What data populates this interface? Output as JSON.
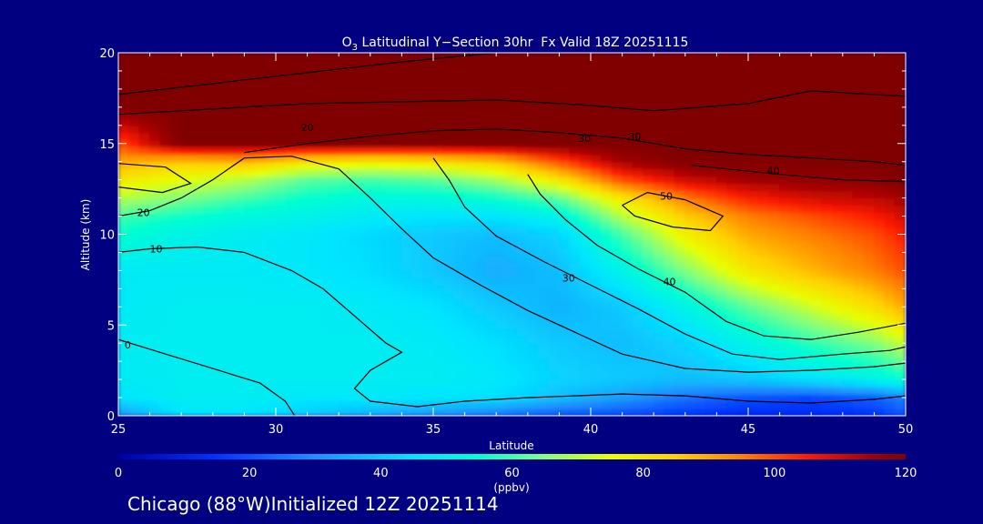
{
  "chart_data": {
    "type": "heatmap",
    "title_species": "O",
    "title_subscript": "3",
    "title_rest": " Latitudinal Y−Section 30hr  Fx Valid 18Z 20251115",
    "xlabel": "Latitude",
    "ylabel": "Altitude (km)",
    "xlim": [
      25,
      50
    ],
    "ylim": [
      0,
      20
    ],
    "x_ticks": [
      25,
      30,
      35,
      40,
      45,
      50
    ],
    "y_ticks": [
      0,
      5,
      10,
      15,
      20
    ],
    "colorbar": {
      "min": 0,
      "max": 120,
      "ticks": [
        0,
        20,
        40,
        60,
        80,
        100,
        120
      ],
      "unit": "(ppbv)",
      "stops": [
        {
          "v": 0,
          "color": "#0000a0"
        },
        {
          "v": 15,
          "color": "#0033ff"
        },
        {
          "v": 30,
          "color": "#1e90ff"
        },
        {
          "v": 45,
          "color": "#00e5ff"
        },
        {
          "v": 55,
          "color": "#00ffd0"
        },
        {
          "v": 65,
          "color": "#80ff80"
        },
        {
          "v": 75,
          "color": "#e8ff00"
        },
        {
          "v": 85,
          "color": "#ffd000"
        },
        {
          "v": 95,
          "color": "#ff8000"
        },
        {
          "v": 105,
          "color": "#ff1a00"
        },
        {
          "v": 115,
          "color": "#a00000"
        },
        {
          "v": 120,
          "color": "#800000"
        }
      ]
    },
    "grid_x": [
      25,
      27,
      29,
      31,
      33,
      35,
      37,
      39,
      41,
      43,
      45,
      47,
      49,
      50
    ],
    "grid_y": [
      0,
      1,
      2,
      4,
      6,
      8,
      10,
      11,
      12,
      13,
      14,
      15,
      17,
      20
    ],
    "grid_values": [
      [
        30,
        45,
        45,
        40,
        35,
        30,
        25,
        20,
        18,
        15,
        12,
        12,
        15,
        20
      ],
      [
        45,
        48,
        48,
        46,
        46,
        45,
        44,
        38,
        32,
        25,
        20,
        18,
        22,
        28
      ],
      [
        47,
        48,
        48,
        48,
        48,
        48,
        46,
        42,
        40,
        38,
        40,
        45,
        50,
        55
      ],
      [
        48,
        48,
        48,
        48,
        48,
        47,
        44,
        40,
        38,
        42,
        50,
        58,
        65,
        72
      ],
      [
        47,
        48,
        48,
        48,
        47,
        45,
        40,
        36,
        40,
        50,
        62,
        72,
        82,
        90
      ],
      [
        47,
        47,
        47,
        46,
        44,
        40,
        35,
        38,
        50,
        65,
        80,
        88,
        95,
        100
      ],
      [
        55,
        50,
        48,
        46,
        43,
        40,
        38,
        42,
        60,
        78,
        90,
        95,
        100,
        105
      ],
      [
        60,
        56,
        52,
        50,
        47,
        45,
        45,
        50,
        70,
        85,
        95,
        100,
        105,
        110
      ],
      [
        70,
        65,
        60,
        55,
        52,
        52,
        55,
        62,
        80,
        95,
        105,
        110,
        112,
        115
      ],
      [
        80,
        75,
        70,
        62,
        60,
        62,
        68,
        80,
        100,
        110,
        115,
        117,
        118,
        120
      ],
      [
        90,
        85,
        88,
        80,
        78,
        80,
        85,
        100,
        115,
        120,
        120,
        120,
        120,
        120
      ],
      [
        100,
        120,
        120,
        120,
        120,
        120,
        120,
        120,
        120,
        120,
        120,
        120,
        120,
        120
      ],
      [
        120,
        120,
        120,
        120,
        120,
        120,
        120,
        120,
        120,
        120,
        120,
        120,
        120,
        120
      ],
      [
        120,
        120,
        120,
        120,
        120,
        120,
        120,
        120,
        120,
        120,
        120,
        120,
        120,
        120
      ]
    ],
    "contours": [
      {
        "label": "10",
        "label_at": [
          26.2,
          9.2
        ],
        "points": [
          [
            25,
            9.0
          ],
          [
            26,
            9.2
          ],
          [
            27.5,
            9.3
          ],
          [
            29,
            9.0
          ],
          [
            30.5,
            8.0
          ],
          [
            31.5,
            7.0
          ],
          [
            32.5,
            5.5
          ],
          [
            33.5,
            4.0
          ],
          [
            34,
            3.5
          ],
          [
            33,
            2.5
          ],
          [
            32.5,
            1.5
          ],
          [
            33,
            0.8
          ],
          [
            34.5,
            0.5
          ],
          [
            36,
            0.8
          ],
          [
            38,
            1.0
          ],
          [
            41,
            1.2
          ],
          [
            43,
            1.1
          ],
          [
            45,
            0.8
          ],
          [
            47,
            0.7
          ],
          [
            49,
            0.9
          ],
          [
            50,
            1.1
          ]
        ]
      },
      {
        "label": "20",
        "label_at": [
          25.8,
          11.2
        ],
        "points": [
          [
            25,
            11.0
          ],
          [
            26,
            11.3
          ],
          [
            27,
            12.0
          ],
          [
            28,
            13.0
          ],
          [
            29,
            14.2
          ],
          [
            30.5,
            14.3
          ],
          [
            32,
            13.6
          ],
          [
            33,
            12.0
          ],
          [
            34,
            10.3
          ],
          [
            35,
            8.7
          ],
          [
            36.5,
            7.2
          ],
          [
            38,
            5.8
          ],
          [
            39.5,
            4.6
          ],
          [
            41,
            3.4
          ],
          [
            43,
            2.6
          ],
          [
            45,
            2.4
          ],
          [
            47,
            2.5
          ],
          [
            49,
            2.7
          ],
          [
            50,
            2.9
          ]
        ]
      },
      {
        "label": "30",
        "label_at": [
          39.3,
          7.6
        ],
        "points": [
          [
            35,
            14.2
          ],
          [
            35.5,
            13.0
          ],
          [
            36,
            11.5
          ],
          [
            37,
            9.9
          ],
          [
            38.5,
            8.5
          ],
          [
            40,
            7.2
          ],
          [
            41.5,
            5.9
          ],
          [
            43,
            4.5
          ],
          [
            44.5,
            3.4
          ],
          [
            46,
            3.1
          ],
          [
            48,
            3.4
          ],
          [
            49.5,
            3.6
          ],
          [
            50,
            3.8
          ]
        ]
      },
      {
        "label": "40",
        "label_at": [
          42.5,
          7.4
        ],
        "points": [
          [
            38,
            13.3
          ],
          [
            38.4,
            12.2
          ],
          [
            39.2,
            10.8
          ],
          [
            40.2,
            9.4
          ],
          [
            41.5,
            8.1
          ],
          [
            43,
            6.8
          ],
          [
            44.3,
            5.2
          ],
          [
            45.5,
            4.4
          ],
          [
            47,
            4.2
          ],
          [
            48.5,
            4.6
          ],
          [
            50,
            5.1
          ]
        ]
      },
      {
        "label": "50",
        "label_at": [
          42.4,
          12.1
        ],
        "points": [
          [
            41,
            11.6
          ],
          [
            41.8,
            12.3
          ],
          [
            43,
            11.9
          ],
          [
            44.2,
            11.0
          ],
          [
            43.8,
            10.2
          ],
          [
            42.6,
            10.4
          ],
          [
            41.4,
            11.0
          ],
          [
            41,
            11.6
          ]
        ]
      },
      {
        "label": "10",
        "label_at": [
          36.1,
          20.0
        ],
        "points": [
          [
            25,
            17.7
          ],
          [
            28,
            18.3
          ],
          [
            31,
            18.9
          ],
          [
            34,
            19.5
          ],
          [
            37,
            20.0
          ],
          [
            40,
            20.0
          ]
        ]
      },
      {
        "label": "20",
        "label_at": [
          31.0,
          15.9
        ],
        "points": [
          [
            25,
            16.6
          ],
          [
            28,
            16.9
          ],
          [
            31,
            17.2
          ],
          [
            34,
            17.3
          ],
          [
            37,
            17.4
          ],
          [
            40,
            17.1
          ],
          [
            42,
            16.8
          ],
          [
            45,
            17.2
          ],
          [
            47,
            17.9
          ],
          [
            50,
            17.6
          ]
        ]
      },
      {
        "label": "30",
        "label_at": [
          41.4,
          15.4
        ],
        "points": [
          [
            29,
            14.5
          ],
          [
            31,
            15.0
          ],
          [
            33,
            15.4
          ],
          [
            35,
            15.7
          ],
          [
            37,
            15.8
          ],
          [
            39,
            15.6
          ],
          [
            41,
            15.3
          ],
          [
            43,
            14.7
          ],
          [
            45,
            14.4
          ],
          [
            47,
            14.2
          ],
          [
            49,
            14.0
          ],
          [
            50,
            13.8
          ]
        ]
      },
      {
        "label": "30",
        "label_at": [
          39.8,
          15.3
        ],
        "points": [
          [
            25,
            13.9
          ],
          [
            26.5,
            13.7
          ],
          [
            27.3,
            12.8
          ],
          [
            26.4,
            12.3
          ],
          [
            25,
            12.6
          ]
        ]
      },
      {
        "label": "40",
        "label_at": [
          45.8,
          13.5
        ],
        "points": [
          [
            43.2,
            13.8
          ],
          [
            46,
            13.3
          ],
          [
            48,
            13.0
          ],
          [
            50,
            12.9
          ]
        ]
      },
      {
        "label": "0",
        "label_at": [
          25.3,
          3.9
        ],
        "points": [
          [
            25,
            4.2
          ],
          [
            26.5,
            3.4
          ],
          [
            28,
            2.6
          ],
          [
            29.5,
            1.8
          ],
          [
            30.3,
            0.8
          ],
          [
            30.6,
            0.0
          ]
        ]
      }
    ]
  },
  "footer": "Chicago (88°W)Initialized 12Z 20251114"
}
